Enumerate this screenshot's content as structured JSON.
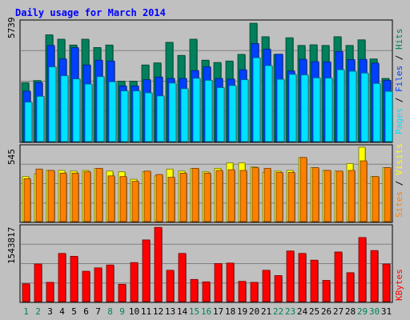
{
  "chart_data": [
    {
      "type": "bar",
      "title": "Daily usage for March 2014",
      "categories": [
        "1",
        "2",
        "3",
        "4",
        "5",
        "6",
        "7",
        "8",
        "9",
        "10",
        "11",
        "12",
        "13",
        "14",
        "15",
        "16",
        "17",
        "18",
        "19",
        "20",
        "21",
        "22",
        "23",
        "24",
        "25",
        "26",
        "27",
        "28",
        "29",
        "30",
        "31"
      ],
      "weekend_days": [
        "1",
        "2",
        "8",
        "9",
        "15",
        "16",
        "22",
        "23",
        "29",
        "30"
      ],
      "ylim": [
        0,
        5739
      ],
      "max_label": "5739",
      "right_axis_label": {
        "pages": "Pages",
        "sep1": " / ",
        "files": "Files",
        "sep2": " / ",
        "hits": "Hits"
      },
      "series": [
        {
          "name": "Hits",
          "color": "#00805C",
          "values": [
            2840,
            2940,
            5140,
            4930,
            4650,
            4930,
            4530,
            4650,
            2910,
            2910,
            3690,
            3790,
            4780,
            4150,
            4930,
            3920,
            3810,
            3880,
            4200,
            5700,
            5050,
            4200,
            5000,
            4630,
            4660,
            4630,
            5050,
            4630,
            4900,
            3980,
            3040
          ]
        },
        {
          "name": "Files",
          "color": "#0040FF",
          "values": [
            2430,
            2850,
            4630,
            3980,
            4520,
            3690,
            3920,
            3880,
            2680,
            2680,
            2980,
            3110,
            3040,
            3040,
            3420,
            3600,
            3040,
            3010,
            3460,
            4720,
            4450,
            4210,
            3400,
            3960,
            3850,
            3840,
            4340,
            3950,
            3960,
            3780,
            2950
          ]
        },
        {
          "name": "Pages",
          "color": "#00E0FF",
          "values": [
            1900,
            2180,
            3600,
            3170,
            3020,
            2770,
            3130,
            2880,
            2440,
            2440,
            2350,
            2200,
            2820,
            2550,
            3050,
            2950,
            2600,
            2700,
            2980,
            4040,
            3660,
            3000,
            3240,
            3210,
            3070,
            3060,
            3460,
            3390,
            3300,
            2800,
            2420
          ]
        }
      ]
    },
    {
      "type": "bar",
      "categories": [
        "1",
        "2",
        "3",
        "4",
        "5",
        "6",
        "7",
        "8",
        "9",
        "10",
        "11",
        "12",
        "13",
        "14",
        "15",
        "16",
        "17",
        "18",
        "19",
        "20",
        "21",
        "22",
        "23",
        "24",
        "25",
        "26",
        "27",
        "28",
        "29",
        "30",
        "31"
      ],
      "ylim": [
        0,
        545
      ],
      "max_label": "545",
      "right_axis_label": {
        "sites": "Sites",
        "sep": " / ",
        "visits": "Visits"
      },
      "series": [
        {
          "name": "Visits",
          "color": "#FFFF00",
          "values": [
            330,
            350,
            375,
            375,
            370,
            375,
            390,
            370,
            365,
            310,
            365,
            335,
            385,
            370,
            390,
            365,
            390,
            430,
            430,
            400,
            360,
            370,
            375,
            470,
            395,
            375,
            370,
            425,
            545,
            330,
            395
          ]
        },
        {
          "name": "Sites",
          "color": "#FF8000",
          "values": [
            315,
            385,
            375,
            355,
            355,
            365,
            390,
            335,
            330,
            295,
            370,
            345,
            325,
            355,
            390,
            355,
            375,
            380,
            375,
            395,
            390,
            360,
            360,
            470,
            395,
            375,
            370,
            375,
            445,
            330,
            395
          ]
        }
      ]
    },
    {
      "type": "bar",
      "categories": [
        "1",
        "2",
        "3",
        "4",
        "5",
        "6",
        "7",
        "8",
        "9",
        "10",
        "11",
        "12",
        "13",
        "14",
        "15",
        "16",
        "17",
        "18",
        "19",
        "20",
        "21",
        "22",
        "23",
        "24",
        "25",
        "26",
        "27",
        "28",
        "29",
        "30",
        "31"
      ],
      "ylim": [
        0,
        1543817
      ],
      "max_label": "1543817",
      "right_axis_label": {
        "kbytes": "KBytes"
      },
      "series": [
        {
          "name": "KBytes",
          "color": "#FF0000",
          "values": [
            370000,
            780000,
            400000,
            1000000,
            940000,
            630000,
            700000,
            760000,
            360000,
            810000,
            1280000,
            1540000,
            650000,
            1000000,
            460000,
            410000,
            790000,
            800000,
            420000,
            400000,
            650000,
            540000,
            1050000,
            1000000,
            860000,
            440000,
            1030000,
            600000,
            1330000,
            1060000,
            780000
          ]
        }
      ]
    }
  ]
}
